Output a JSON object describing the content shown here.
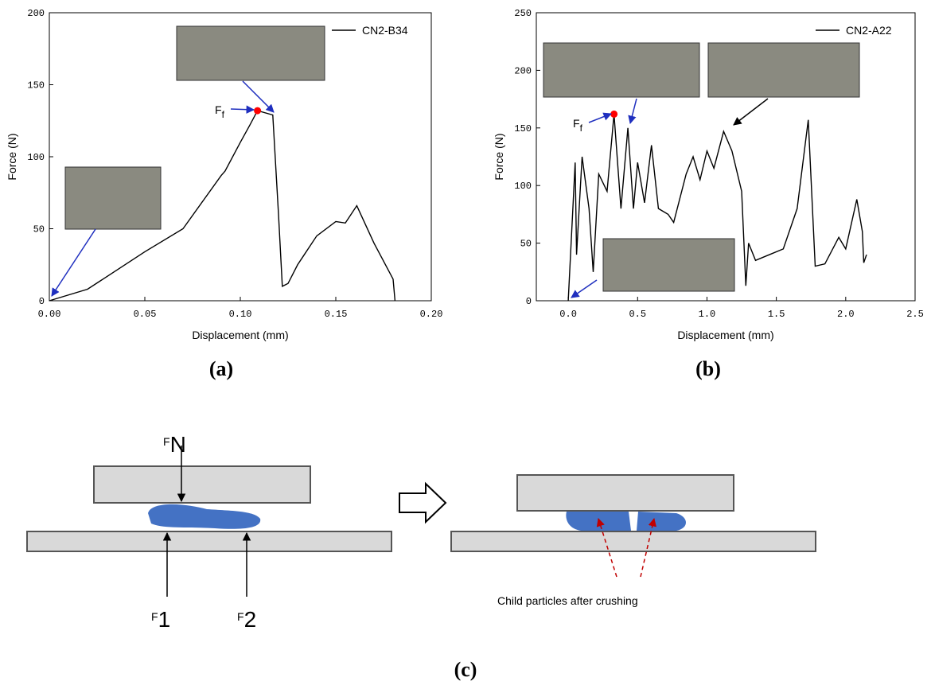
{
  "chart_data": [
    {
      "type": "line",
      "panel_label": "(a)",
      "xlabel": "Displacement (mm)",
      "ylabel": "Force (N)",
      "xlim": [
        0,
        0.2
      ],
      "xticks": [
        {
          "value": 0,
          "label": "0.00"
        },
        0.05,
        {
          "value": 0.1,
          "label": "0.10"
        },
        0.15,
        {
          "value": 0.2,
          "label": "0.20"
        }
      ],
      "ylim": [
        0,
        200
      ],
      "yticks": [
        0,
        50,
        100,
        150,
        200
      ],
      "x": [
        0,
        0.02,
        0.05,
        0.07,
        0.09,
        0.092,
        0.1,
        0.105,
        0.109,
        0.117,
        0.12,
        0.122,
        0.125,
        0.13,
        0.14,
        0.15,
        0.155,
        0.161,
        0.17,
        0.18,
        0.181
      ],
      "series": [
        {
          "name": "CN2-B34",
          "color": "#000000",
          "values": [
            0,
            8,
            34,
            50,
            87,
            90,
            110,
            122,
            132,
            129,
            60,
            10,
            12,
            25,
            45,
            55,
            54,
            66,
            40,
            15,
            0
          ]
        }
      ],
      "highlight_index": 8,
      "highlight_color": "#ff0000",
      "annotation": {
        "main": "F",
        "sub": "f"
      },
      "legend": "upper right"
    },
    {
      "type": "line",
      "panel_label": "(b)",
      "xlabel": "Displacement (mm)",
      "ylabel": "Force (N)",
      "xlim": [
        -0.23,
        2.5
      ],
      "xticks": [
        {
          "value": 0,
          "label": "0.0"
        },
        0.5,
        {
          "value": 1,
          "label": "1.0"
        },
        1.5,
        {
          "value": 2,
          "label": "2.0"
        },
        2.5
      ],
      "ylim": [
        0,
        250
      ],
      "yticks": [
        0,
        50,
        100,
        150,
        200,
        250
      ],
      "x": [
        0,
        0.05,
        0.06,
        0.1,
        0.15,
        0.18,
        0.22,
        0.28,
        0.33,
        0.38,
        0.43,
        0.47,
        0.5,
        0.55,
        0.6,
        0.65,
        0.72,
        0.76,
        0.85,
        0.9,
        0.95,
        1.0,
        1.05,
        1.12,
        1.18,
        1.25,
        1.28,
        1.3,
        1.35,
        1.45,
        1.55,
        1.65,
        1.73,
        1.78,
        1.85,
        1.95,
        2.0,
        2.08,
        2.12,
        2.13,
        2.15
      ],
      "series": [
        {
          "name": "CN2-A22",
          "color": "#000000",
          "values": [
            0,
            120,
            40,
            125,
            80,
            25,
            110,
            95,
            162,
            80,
            150,
            80,
            120,
            85,
            135,
            80,
            75,
            68,
            110,
            125,
            105,
            130,
            115,
            147,
            130,
            95,
            13,
            50,
            35,
            40,
            45,
            80,
            157,
            30,
            32,
            55,
            45,
            88,
            60,
            33,
            40
          ]
        }
      ],
      "highlight_index": 8,
      "highlight_color": "#ff0000",
      "annotation": {
        "main": "F",
        "sub": "f"
      },
      "legend": "upper right"
    }
  ],
  "diagram": {
    "panel_label": "(c)",
    "normal_force": {
      "main": "F",
      "sub": "N"
    },
    "force_1": {
      "main": "F",
      "sub": "1"
    },
    "force_2": {
      "main": "F",
      "sub": "2"
    },
    "caption": "Child particles after crushing"
  }
}
